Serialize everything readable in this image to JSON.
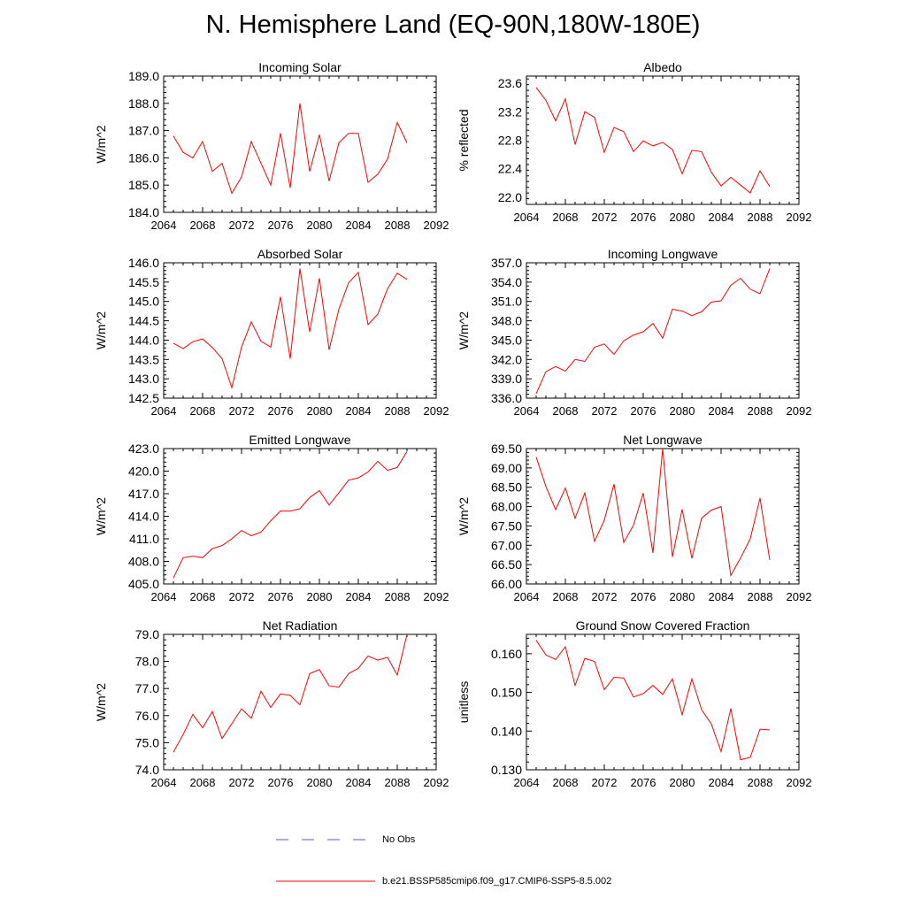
{
  "title": "N. Hemisphere Land (EQ-90N,180W-180E)",
  "legend": {
    "entries": [
      {
        "label": "No Obs",
        "color": "#5a5ad8",
        "style": "dashed"
      },
      {
        "label": "b.e21.BSSP585cmip6.f09_g17.CMIP6-SSP5-8.5.002",
        "color": "#ff0000",
        "style": "solid"
      }
    ]
  },
  "chart_data": [
    {
      "type": "line",
      "title": "Incoming Solar",
      "ylabel": "W/m^2",
      "xlim": [
        2064,
        2092
      ],
      "ylim": [
        184.0,
        189.0
      ],
      "xticks": [
        "2064",
        "2068",
        "2072",
        "2076",
        "2080",
        "2084",
        "2088",
        "2092"
      ],
      "yticks": [
        "184.0",
        "185.0",
        "186.0",
        "187.0",
        "188.0",
        "189.0"
      ],
      "x": [
        2065,
        2066,
        2067,
        2068,
        2069,
        2070,
        2071,
        2072,
        2073,
        2074,
        2075,
        2076,
        2077,
        2078,
        2079,
        2080,
        2081,
        2082,
        2083,
        2084,
        2085,
        2086,
        2087,
        2088,
        2089
      ],
      "series": [
        {
          "color": "#ff0000",
          "values": [
            186.8,
            186.2,
            186.0,
            186.6,
            185.5,
            185.8,
            184.7,
            185.3,
            186.6,
            185.8,
            185.0,
            186.9,
            184.9,
            188.0,
            185.5,
            186.85,
            185.15,
            186.55,
            186.9,
            186.9,
            185.1,
            185.4,
            185.95,
            187.3,
            186.55
          ]
        }
      ]
    },
    {
      "type": "line",
      "title": "Albedo",
      "ylabel": "% reflected",
      "xlim": [
        2064,
        2092
      ],
      "ylim": [
        21.9,
        23.7
      ],
      "xticks": [
        "2064",
        "2068",
        "2072",
        "2076",
        "2080",
        "2084",
        "2088",
        "2092"
      ],
      "yticks": [
        "22.0",
        "22.4",
        "22.8",
        "23.2",
        "23.6"
      ],
      "x": [
        2065,
        2066,
        2067,
        2068,
        2069,
        2070,
        2071,
        2072,
        2073,
        2074,
        2075,
        2076,
        2077,
        2078,
        2079,
        2080,
        2081,
        2082,
        2083,
        2084,
        2085,
        2086,
        2087,
        2088,
        2089
      ],
      "series": [
        {
          "color": "#ff0000",
          "values": [
            23.54,
            23.36,
            23.07,
            23.38,
            22.74,
            23.2,
            23.12,
            22.63,
            22.98,
            22.92,
            22.64,
            22.79,
            22.72,
            22.77,
            22.67,
            22.33,
            22.66,
            22.64,
            22.35,
            22.16,
            22.28,
            22.17,
            22.06,
            22.37,
            22.15
          ]
        }
      ]
    },
    {
      "type": "line",
      "title": "Absorbed Solar",
      "ylabel": "W/m^2",
      "xlim": [
        2064,
        2092
      ],
      "ylim": [
        142.5,
        146.0
      ],
      "xticks": [
        "2064",
        "2068",
        "2072",
        "2076",
        "2080",
        "2084",
        "2088",
        "2092"
      ],
      "yticks": [
        "142.5",
        "143.0",
        "143.5",
        "144.0",
        "144.5",
        "145.0",
        "145.5",
        "146.0"
      ],
      "x": [
        2065,
        2066,
        2067,
        2068,
        2069,
        2070,
        2071,
        2072,
        2073,
        2074,
        2075,
        2076,
        2077,
        2078,
        2079,
        2080,
        2081,
        2082,
        2083,
        2084,
        2085,
        2086,
        2087,
        2088,
        2089
      ],
      "series": [
        {
          "color": "#ff0000",
          "values": [
            143.92,
            143.78,
            143.96,
            144.03,
            143.81,
            143.52,
            142.77,
            143.82,
            144.47,
            143.97,
            143.82,
            145.12,
            143.52,
            145.85,
            144.21,
            145.6,
            143.75,
            144.8,
            145.48,
            145.75,
            144.4,
            144.67,
            145.33,
            145.73,
            145.57
          ]
        }
      ]
    },
    {
      "type": "line",
      "title": "Incoming Longwave",
      "ylabel": "W/m^2",
      "xlim": [
        2064,
        2092
      ],
      "ylim": [
        336.0,
        357.0
      ],
      "xticks": [
        "2064",
        "2068",
        "2072",
        "2076",
        "2080",
        "2084",
        "2088",
        "2092"
      ],
      "yticks": [
        "336.0",
        "339.0",
        "342.0",
        "345.0",
        "348.0",
        "351.0",
        "354.0",
        "357.0"
      ],
      "x": [
        2065,
        2066,
        2067,
        2068,
        2069,
        2070,
        2071,
        2072,
        2073,
        2074,
        2075,
        2076,
        2077,
        2078,
        2079,
        2080,
        2081,
        2082,
        2083,
        2084,
        2085,
        2086,
        2087,
        2088,
        2089
      ],
      "series": [
        {
          "color": "#ff0000",
          "values": [
            336.7,
            340.1,
            340.9,
            340.2,
            342.0,
            341.7,
            343.9,
            344.4,
            342.8,
            344.9,
            345.8,
            346.3,
            347.6,
            345.3,
            349.8,
            349.5,
            348.8,
            349.4,
            350.9,
            351.1,
            353.5,
            354.6,
            352.9,
            352.2,
            356.1
          ]
        }
      ]
    },
    {
      "type": "line",
      "title": "Emitted Longwave",
      "ylabel": "W/m^2",
      "xlim": [
        2064,
        2092
      ],
      "ylim": [
        405.0,
        423.0
      ],
      "xticks": [
        "2064",
        "2068",
        "2072",
        "2076",
        "2080",
        "2084",
        "2088",
        "2092"
      ],
      "yticks": [
        "405.0",
        "408.0",
        "411.0",
        "414.0",
        "417.0",
        "420.0",
        "423.0"
      ],
      "x": [
        2065,
        2066,
        2067,
        2068,
        2069,
        2070,
        2071,
        2072,
        2073,
        2074,
        2075,
        2076,
        2077,
        2078,
        2079,
        2080,
        2081,
        2082,
        2083,
        2084,
        2085,
        2086,
        2087,
        2088,
        2089
      ],
      "series": [
        {
          "color": "#ff0000",
          "values": [
            405.8,
            408.5,
            408.7,
            408.5,
            409.7,
            410.1,
            411.0,
            412.1,
            411.4,
            411.9,
            413.4,
            414.7,
            414.7,
            415.0,
            416.5,
            417.4,
            415.5,
            417.1,
            418.8,
            419.1,
            419.9,
            421.3,
            420.1,
            420.5,
            422.6
          ]
        }
      ]
    },
    {
      "type": "line",
      "title": "Net Longwave",
      "ylabel": "W/m^2",
      "xlim": [
        2064,
        2092
      ],
      "ylim": [
        66.0,
        69.5
      ],
      "xticks": [
        "2064",
        "2068",
        "2072",
        "2076",
        "2080",
        "2084",
        "2088",
        "2092"
      ],
      "yticks": [
        "66.00",
        "66.50",
        "67.00",
        "67.50",
        "68.00",
        "68.50",
        "69.00",
        "69.50"
      ],
      "x": [
        2065,
        2066,
        2067,
        2068,
        2069,
        2070,
        2071,
        2072,
        2073,
        2074,
        2075,
        2076,
        2077,
        2078,
        2079,
        2080,
        2081,
        2082,
        2083,
        2084,
        2085,
        2086,
        2087,
        2088,
        2089
      ],
      "series": [
        {
          "color": "#ff0000",
          "values": [
            69.28,
            68.52,
            67.92,
            68.48,
            67.7,
            68.35,
            67.1,
            67.65,
            68.58,
            67.07,
            67.52,
            68.35,
            66.8,
            69.5,
            66.7,
            67.93,
            66.66,
            67.7,
            67.91,
            68.0,
            66.22,
            66.67,
            67.17,
            68.22,
            66.62
          ]
        }
      ]
    },
    {
      "type": "line",
      "title": "Net Radiation",
      "ylabel": "W/m^2",
      "xlim": [
        2064,
        2092
      ],
      "ylim": [
        74.0,
        79.0
      ],
      "xticks": [
        "2064",
        "2068",
        "2072",
        "2076",
        "2080",
        "2084",
        "2088",
        "2092"
      ],
      "yticks": [
        "74.0",
        "75.0",
        "76.0",
        "77.0",
        "78.0",
        "79.0"
      ],
      "x": [
        2065,
        2066,
        2067,
        2068,
        2069,
        2070,
        2071,
        2072,
        2073,
        2074,
        2075,
        2076,
        2077,
        2078,
        2079,
        2080,
        2081,
        2082,
        2083,
        2084,
        2085,
        2086,
        2087,
        2088,
        2089
      ],
      "series": [
        {
          "color": "#ff0000",
          "values": [
            74.65,
            75.3,
            76.05,
            75.55,
            76.15,
            75.15,
            75.7,
            76.25,
            75.9,
            76.9,
            76.3,
            76.8,
            76.75,
            76.4,
            77.55,
            77.7,
            77.1,
            77.05,
            77.55,
            77.75,
            78.2,
            78.05,
            78.15,
            77.5,
            79.0
          ]
        }
      ]
    },
    {
      "type": "line",
      "title": "Ground Snow Covered Fraction",
      "ylabel": "unitless",
      "xlim": [
        2064,
        2092
      ],
      "ylim": [
        0.13,
        0.165
      ],
      "xticks": [
        "2064",
        "2068",
        "2072",
        "2076",
        "2080",
        "2084",
        "2088",
        "2092"
      ],
      "yticks": [
        "0.130",
        "0.140",
        "0.150",
        "0.160"
      ],
      "x": [
        2065,
        2066,
        2067,
        2068,
        2069,
        2070,
        2071,
        2072,
        2073,
        2074,
        2075,
        2076,
        2077,
        2078,
        2079,
        2080,
        2081,
        2082,
        2083,
        2084,
        2085,
        2086,
        2087,
        2088,
        2089
      ],
      "series": [
        {
          "color": "#ff0000",
          "values": [
            0.1635,
            0.1597,
            0.1585,
            0.1618,
            0.1518,
            0.1588,
            0.158,
            0.1507,
            0.1539,
            0.1537,
            0.1488,
            0.1497,
            0.1518,
            0.1495,
            0.1535,
            0.1442,
            0.1535,
            0.1455,
            0.1418,
            0.1347,
            0.1458,
            0.1326,
            0.1332,
            0.1405,
            0.1403
          ]
        }
      ]
    }
  ]
}
